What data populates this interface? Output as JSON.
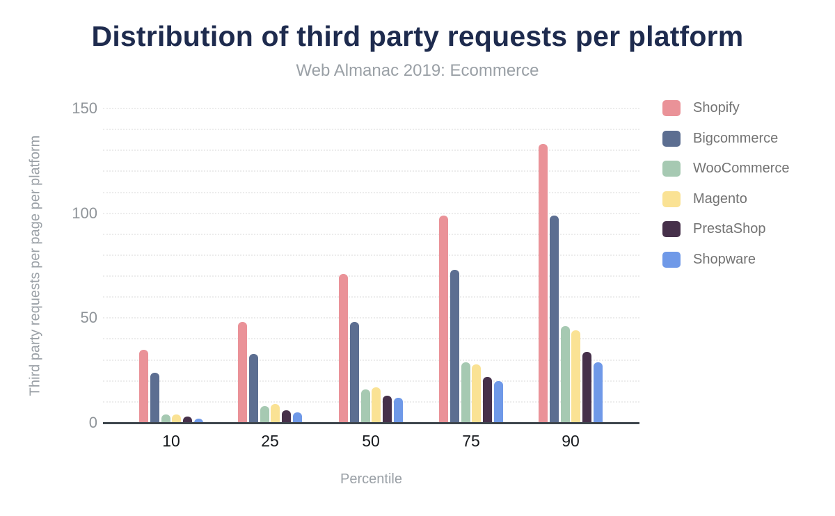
{
  "header": {
    "title": "Distribution of third party requests per platform",
    "subtitle": "Web Almanac 2019: Ecommerce"
  },
  "chart_data": {
    "type": "bar",
    "title": "Distribution of third party requests per platform",
    "subtitle": "Web Almanac 2019: Ecommerce",
    "xlabel": "Percentile",
    "ylabel": "Third party requests per page per platform",
    "categories": [
      "10",
      "25",
      "50",
      "75",
      "90"
    ],
    "series": [
      {
        "name": "Shopify",
        "color": "#ea9298",
        "values": [
          35,
          48,
          71,
          99,
          133
        ]
      },
      {
        "name": "Bigcommerce",
        "color": "#5c6e91",
        "values": [
          24,
          33,
          48,
          73,
          99
        ]
      },
      {
        "name": "WooCommerce",
        "color": "#a6c9b2",
        "values": [
          4,
          8,
          16,
          29,
          46
        ]
      },
      {
        "name": "Magento",
        "color": "#fae294",
        "values": [
          4,
          9,
          17,
          28,
          44
        ]
      },
      {
        "name": "PrestaShop",
        "color": "#46304a",
        "values": [
          3,
          6,
          13,
          22,
          34
        ]
      },
      {
        "name": "Shopware",
        "color": "#6f99e8",
        "values": [
          2,
          5,
          12,
          20,
          29
        ]
      }
    ],
    "ylim": [
      0,
      150
    ],
    "yticks": [
      0,
      50,
      100,
      150
    ],
    "grid": "horizontal dotted lines every 10 units",
    "legend_position": "right"
  },
  "colors": {
    "title_text": "#1e2b4e",
    "muted_text": "#9aa0a6",
    "ytick_text": "#8f9499",
    "xtick_text": "#16191d",
    "legend_text": "#737373",
    "axis_line": "#3e464d",
    "gridline": "#ececec",
    "background": "#ffffff"
  }
}
